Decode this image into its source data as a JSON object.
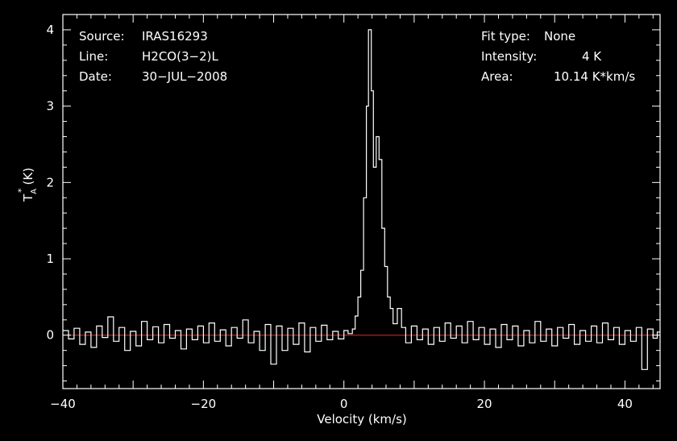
{
  "chart_data": {
    "type": "line",
    "style": "step",
    "xlabel": "Velocity (km/s)",
    "ylabel_main": "T",
    "ylabel_sub": "A",
    "ylabel_sup": "*",
    "ylabel_unit": "(K)",
    "xlim": [
      -40,
      45
    ],
    "ylim": [
      -0.7,
      4.2
    ],
    "xticks": [
      -40,
      -20,
      0,
      20,
      40
    ],
    "xtick_labels": [
      "−40",
      "−20",
      "0",
      "20",
      "40"
    ],
    "yticks": [
      0,
      1,
      2,
      3,
      4
    ],
    "ytick_labels": [
      "0",
      "1",
      "2",
      "3",
      "4"
    ],
    "baseline": 0,
    "colors": {
      "spectrum": "#ffffff",
      "baseline": "#b22222",
      "frame": "#ffffff",
      "background": "#000000"
    },
    "series": [
      {
        "points": [
          [
            -40.0,
            0.06
          ],
          [
            -39.2,
            -0.05
          ],
          [
            -38.4,
            0.09
          ],
          [
            -37.6,
            -0.12
          ],
          [
            -36.8,
            0.04
          ],
          [
            -36.0,
            -0.16
          ],
          [
            -35.2,
            0.12
          ],
          [
            -34.4,
            -0.03
          ],
          [
            -33.6,
            0.24
          ],
          [
            -32.8,
            -0.08
          ],
          [
            -32.0,
            0.1
          ],
          [
            -31.2,
            -0.2
          ],
          [
            -30.4,
            0.05
          ],
          [
            -29.6,
            -0.14
          ],
          [
            -28.8,
            0.18
          ],
          [
            -28.0,
            -0.06
          ],
          [
            -27.2,
            0.11
          ],
          [
            -26.4,
            -0.1
          ],
          [
            -25.6,
            0.14
          ],
          [
            -24.8,
            -0.04
          ],
          [
            -24.0,
            0.06
          ],
          [
            -23.2,
            -0.18
          ],
          [
            -22.4,
            0.08
          ],
          [
            -21.6,
            -0.06
          ],
          [
            -20.8,
            0.12
          ],
          [
            -20.0,
            -0.1
          ],
          [
            -19.2,
            0.16
          ],
          [
            -18.4,
            -0.08
          ],
          [
            -17.6,
            0.07
          ],
          [
            -16.8,
            -0.14
          ],
          [
            -16.0,
            0.1
          ],
          [
            -15.2,
            -0.04
          ],
          [
            -14.4,
            0.2
          ],
          [
            -13.6,
            -0.1
          ],
          [
            -12.8,
            0.05
          ],
          [
            -12.0,
            -0.2
          ],
          [
            -11.2,
            0.14
          ],
          [
            -10.4,
            -0.38
          ],
          [
            -9.6,
            0.12
          ],
          [
            -8.8,
            -0.2
          ],
          [
            -8.0,
            0.09
          ],
          [
            -7.2,
            -0.12
          ],
          [
            -6.4,
            0.16
          ],
          [
            -5.6,
            -0.22
          ],
          [
            -4.8,
            0.1
          ],
          [
            -4.0,
            -0.08
          ],
          [
            -3.2,
            0.13
          ],
          [
            -2.4,
            -0.06
          ],
          [
            -1.6,
            0.05
          ],
          [
            -0.8,
            -0.05
          ],
          [
            0.0,
            0.06
          ],
          [
            0.6,
            0.02
          ],
          [
            1.2,
            0.08
          ],
          [
            1.6,
            0.25
          ],
          [
            2.0,
            0.5
          ],
          [
            2.4,
            0.85
          ],
          [
            2.8,
            1.8
          ],
          [
            3.2,
            3.0
          ],
          [
            3.5,
            4.0
          ],
          [
            3.9,
            3.2
          ],
          [
            4.2,
            2.2
          ],
          [
            4.6,
            2.6
          ],
          [
            5.0,
            2.3
          ],
          [
            5.4,
            1.4
          ],
          [
            5.8,
            0.9
          ],
          [
            6.2,
            0.5
          ],
          [
            6.6,
            0.35
          ],
          [
            7.0,
            0.15
          ],
          [
            7.6,
            0.35
          ],
          [
            8.2,
            0.1
          ],
          [
            8.8,
            -0.1
          ],
          [
            9.6,
            0.12
          ],
          [
            10.4,
            -0.06
          ],
          [
            11.2,
            0.08
          ],
          [
            12.0,
            -0.12
          ],
          [
            12.8,
            0.1
          ],
          [
            13.6,
            -0.08
          ],
          [
            14.4,
            0.16
          ],
          [
            15.2,
            -0.04
          ],
          [
            16.0,
            0.12
          ],
          [
            16.8,
            -0.1
          ],
          [
            17.6,
            0.18
          ],
          [
            18.4,
            -0.06
          ],
          [
            19.2,
            0.1
          ],
          [
            20.0,
            -0.12
          ],
          [
            20.8,
            0.08
          ],
          [
            21.6,
            -0.16
          ],
          [
            22.4,
            0.14
          ],
          [
            23.2,
            -0.06
          ],
          [
            24.0,
            0.12
          ],
          [
            24.8,
            -0.14
          ],
          [
            25.6,
            0.06
          ],
          [
            26.4,
            -0.1
          ],
          [
            27.2,
            0.18
          ],
          [
            28.0,
            -0.08
          ],
          [
            28.8,
            0.08
          ],
          [
            29.6,
            -0.14
          ],
          [
            30.4,
            0.1
          ],
          [
            31.2,
            -0.04
          ],
          [
            32.0,
            0.14
          ],
          [
            32.8,
            -0.12
          ],
          [
            33.6,
            0.06
          ],
          [
            34.4,
            -0.08
          ],
          [
            35.2,
            0.12
          ],
          [
            36.0,
            -0.1
          ],
          [
            36.8,
            0.16
          ],
          [
            37.6,
            -0.06
          ],
          [
            38.4,
            0.1
          ],
          [
            39.2,
            -0.12
          ],
          [
            40.0,
            0.06
          ],
          [
            40.8,
            -0.08
          ],
          [
            41.6,
            0.1
          ],
          [
            42.4,
            -0.45
          ],
          [
            43.2,
            0.08
          ],
          [
            44.0,
            -0.04
          ],
          [
            44.6,
            0.04
          ]
        ]
      }
    ]
  },
  "info_left": [
    {
      "label": "Source:",
      "value": "IRAS16293"
    },
    {
      "label": "Line:",
      "value": "H2CO(3−2)L"
    },
    {
      "label": "Date:",
      "value": "30−JUL−2008"
    }
  ],
  "info_right": [
    {
      "label": "Fit type:",
      "value": "None"
    },
    {
      "label": "Intensity:",
      "value": "4 K"
    },
    {
      "label": "Area:",
      "value": "10.14 K*km/s"
    }
  ]
}
